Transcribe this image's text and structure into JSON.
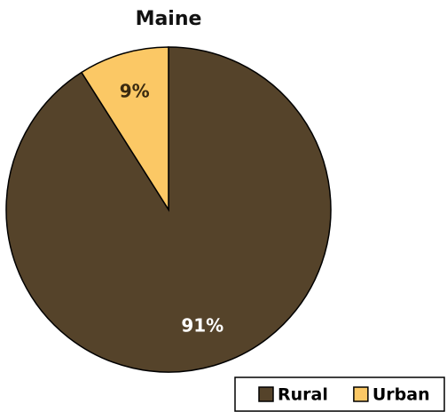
{
  "chart_data": {
    "type": "pie",
    "title": "Maine",
    "categories": [
      "Rural",
      "Urban"
    ],
    "values": [
      91,
      9
    ],
    "value_labels": [
      "91%",
      "9%"
    ],
    "colors": [
      "#55432a",
      "#fbc865"
    ],
    "legend": "bottom-right",
    "start_angle": 0,
    "direction": "clockwise"
  }
}
